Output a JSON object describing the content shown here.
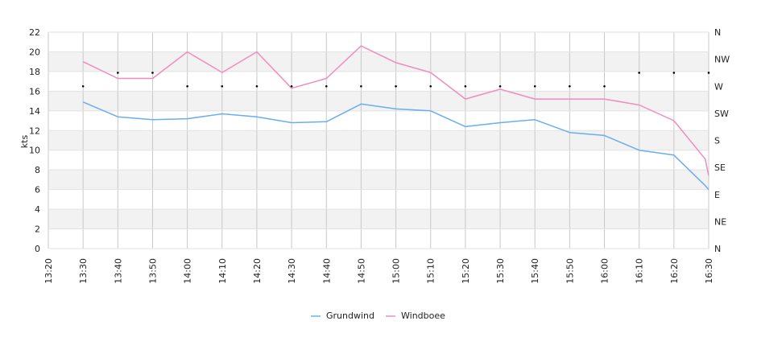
{
  "chart_data": {
    "type": "line",
    "ylabel": "kts",
    "ylim": [
      0,
      22
    ],
    "yticks": [
      0,
      2,
      4,
      6,
      8,
      10,
      12,
      14,
      16,
      18,
      20,
      22
    ],
    "x_tick_labels": [
      "13:20",
      "13:30",
      "13:40",
      "13:50",
      "14:00",
      "14:10",
      "14:20",
      "14:30",
      "14:40",
      "14:50",
      "15:00",
      "15:10",
      "15:20",
      "15:30",
      "15:40",
      "15:50",
      "16:00",
      "16:10",
      "16:20",
      "16:30"
    ],
    "right_axis_labels": [
      "N",
      "NE",
      "E",
      "SE",
      "S",
      "SW",
      "W",
      "NW",
      "N"
    ],
    "grid": true,
    "legend_position": "bottom",
    "series": [
      {
        "name": "Grundwind",
        "color": "#6aaef0",
        "x": [
          "13:30",
          "13:40",
          "13:50",
          "14:00",
          "14:10",
          "14:20",
          "14:30",
          "14:40",
          "14:50",
          "15:00",
          "15:10",
          "15:20",
          "15:30",
          "15:40",
          "15:50",
          "16:00",
          "16:10",
          "16:20",
          "16:29",
          "16:30"
        ],
        "values": [
          14.9,
          13.4,
          13.1,
          13.2,
          13.7,
          13.4,
          12.8,
          12.9,
          14.7,
          14.2,
          14.0,
          12.4,
          12.8,
          13.1,
          11.8,
          11.5,
          10.0,
          9.5,
          6.4,
          6.0
        ]
      },
      {
        "name": "Windboee",
        "color": "#f08cbe",
        "x": [
          "13:30",
          "13:40",
          "13:50",
          "14:00",
          "14:10",
          "14:20",
          "14:30",
          "14:40",
          "14:50",
          "15:00",
          "15:10",
          "15:20",
          "15:30",
          "15:40",
          "15:50",
          "16:00",
          "16:10",
          "16:20",
          "16:29",
          "16:30"
        ],
        "values": [
          19.0,
          17.3,
          17.3,
          20.0,
          17.9,
          20.0,
          16.3,
          17.3,
          20.6,
          18.9,
          17.9,
          15.2,
          16.2,
          15.2,
          15.2,
          15.2,
          14.6,
          13.0,
          9.1,
          7.4
        ]
      }
    ],
    "direction_series": {
      "unit": "compass",
      "x": [
        "13:30",
        "13:40",
        "13:50",
        "14:00",
        "14:10",
        "14:20",
        "14:30",
        "14:40",
        "14:50",
        "15:00",
        "15:10",
        "15:20",
        "15:30",
        "15:40",
        "15:50",
        "16:00",
        "16:10",
        "16:20",
        "16:30"
      ],
      "values": [
        "W",
        "WNW",
        "WNW",
        "W",
        "W",
        "W",
        "W",
        "W",
        "W",
        "W",
        "W",
        "W",
        "W",
        "W",
        "W",
        "W",
        "WNW",
        "WNW",
        "WNW"
      ]
    }
  }
}
